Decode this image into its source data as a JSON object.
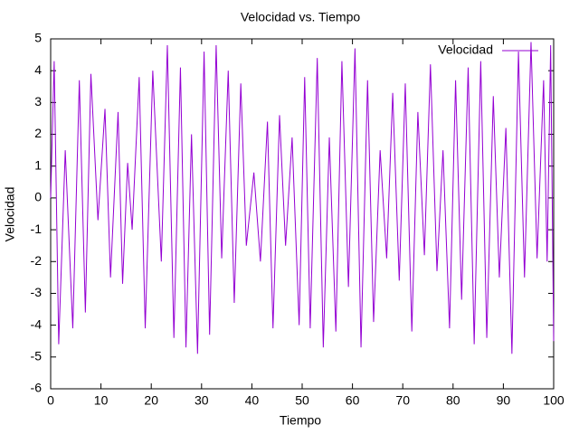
{
  "chart_data": {
    "type": "line",
    "title": "Velocidad vs. Tiempo",
    "x_label": "Tiempo",
    "y_label": "Velocidad",
    "xlim": [
      0,
      100
    ],
    "ylim": [
      -6,
      5
    ],
    "xticks": [
      0,
      10,
      20,
      30,
      40,
      50,
      60,
      70,
      80,
      90,
      100
    ],
    "yticks": [
      -6,
      -5,
      -4,
      -3,
      -2,
      -1,
      0,
      1,
      2,
      3,
      4,
      5
    ],
    "grid": false,
    "legend": "top-right",
    "series": [
      {
        "name": "Velocidad",
        "color": "#9400d3",
        "x": [
          0,
          0.7,
          1.6,
          2.9,
          4.4,
          5.7,
          6.9,
          8,
          9.4,
          10.8,
          11.9,
          13.4,
          14.3,
          15.3,
          16.2,
          17.6,
          18.8,
          20.3,
          22,
          23.2,
          24.5,
          25.8,
          26.9,
          28,
          29.2,
          30.5,
          31.6,
          32.9,
          34,
          35.3,
          36.5,
          37.8,
          38.9,
          40.4,
          41.7,
          43.1,
          44.2,
          45.5,
          46.7,
          48,
          49.4,
          50.5,
          51.6,
          53,
          54.2,
          55.4,
          56.7,
          57.9,
          59.2,
          60.5,
          61.7,
          63,
          64.2,
          65.5,
          66.8,
          68,
          69.3,
          70.5,
          71.8,
          73,
          74.3,
          75.5,
          76.8,
          78,
          79.3,
          80.5,
          81.7,
          83,
          84.2,
          85.5,
          86.7,
          88,
          89.2,
          90.5,
          91.7,
          93,
          94.2,
          95.5,
          96.7,
          98,
          98.7,
          99.4,
          100
        ],
        "values": [
          0,
          4.3,
          -4.6,
          1.5,
          -4.1,
          3.7,
          -3.6,
          3.9,
          -0.7,
          2.8,
          -2.5,
          2.7,
          -2.7,
          1.1,
          -1.0,
          3.8,
          -4.1,
          4.0,
          -2.0,
          4.8,
          -4.4,
          4.1,
          -4.7,
          2.0,
          -4.9,
          4.6,
          -4.3,
          4.8,
          -1.9,
          4.0,
          -3.3,
          3.6,
          -1.5,
          0.8,
          -2.0,
          2.4,
          -4.1,
          2.6,
          -1.5,
          1.9,
          -4.0,
          3.8,
          -4.1,
          4.4,
          -4.7,
          1.9,
          -4.2,
          4.3,
          -2.8,
          4.7,
          -4.7,
          3.7,
          -3.9,
          1.5,
          -1.9,
          3.3,
          -2.6,
          3.6,
          -4.2,
          2.7,
          -1.8,
          4.2,
          -2.3,
          1.5,
          -4.1,
          3.7,
          -3.2,
          4.1,
          -4.6,
          4.3,
          -4.4,
          3.2,
          -2.5,
          2.2,
          -4.9,
          4.6,
          -2.5,
          4.9,
          -1.9,
          3.7,
          -2.0,
          4.8,
          -4.5
        ]
      }
    ]
  }
}
